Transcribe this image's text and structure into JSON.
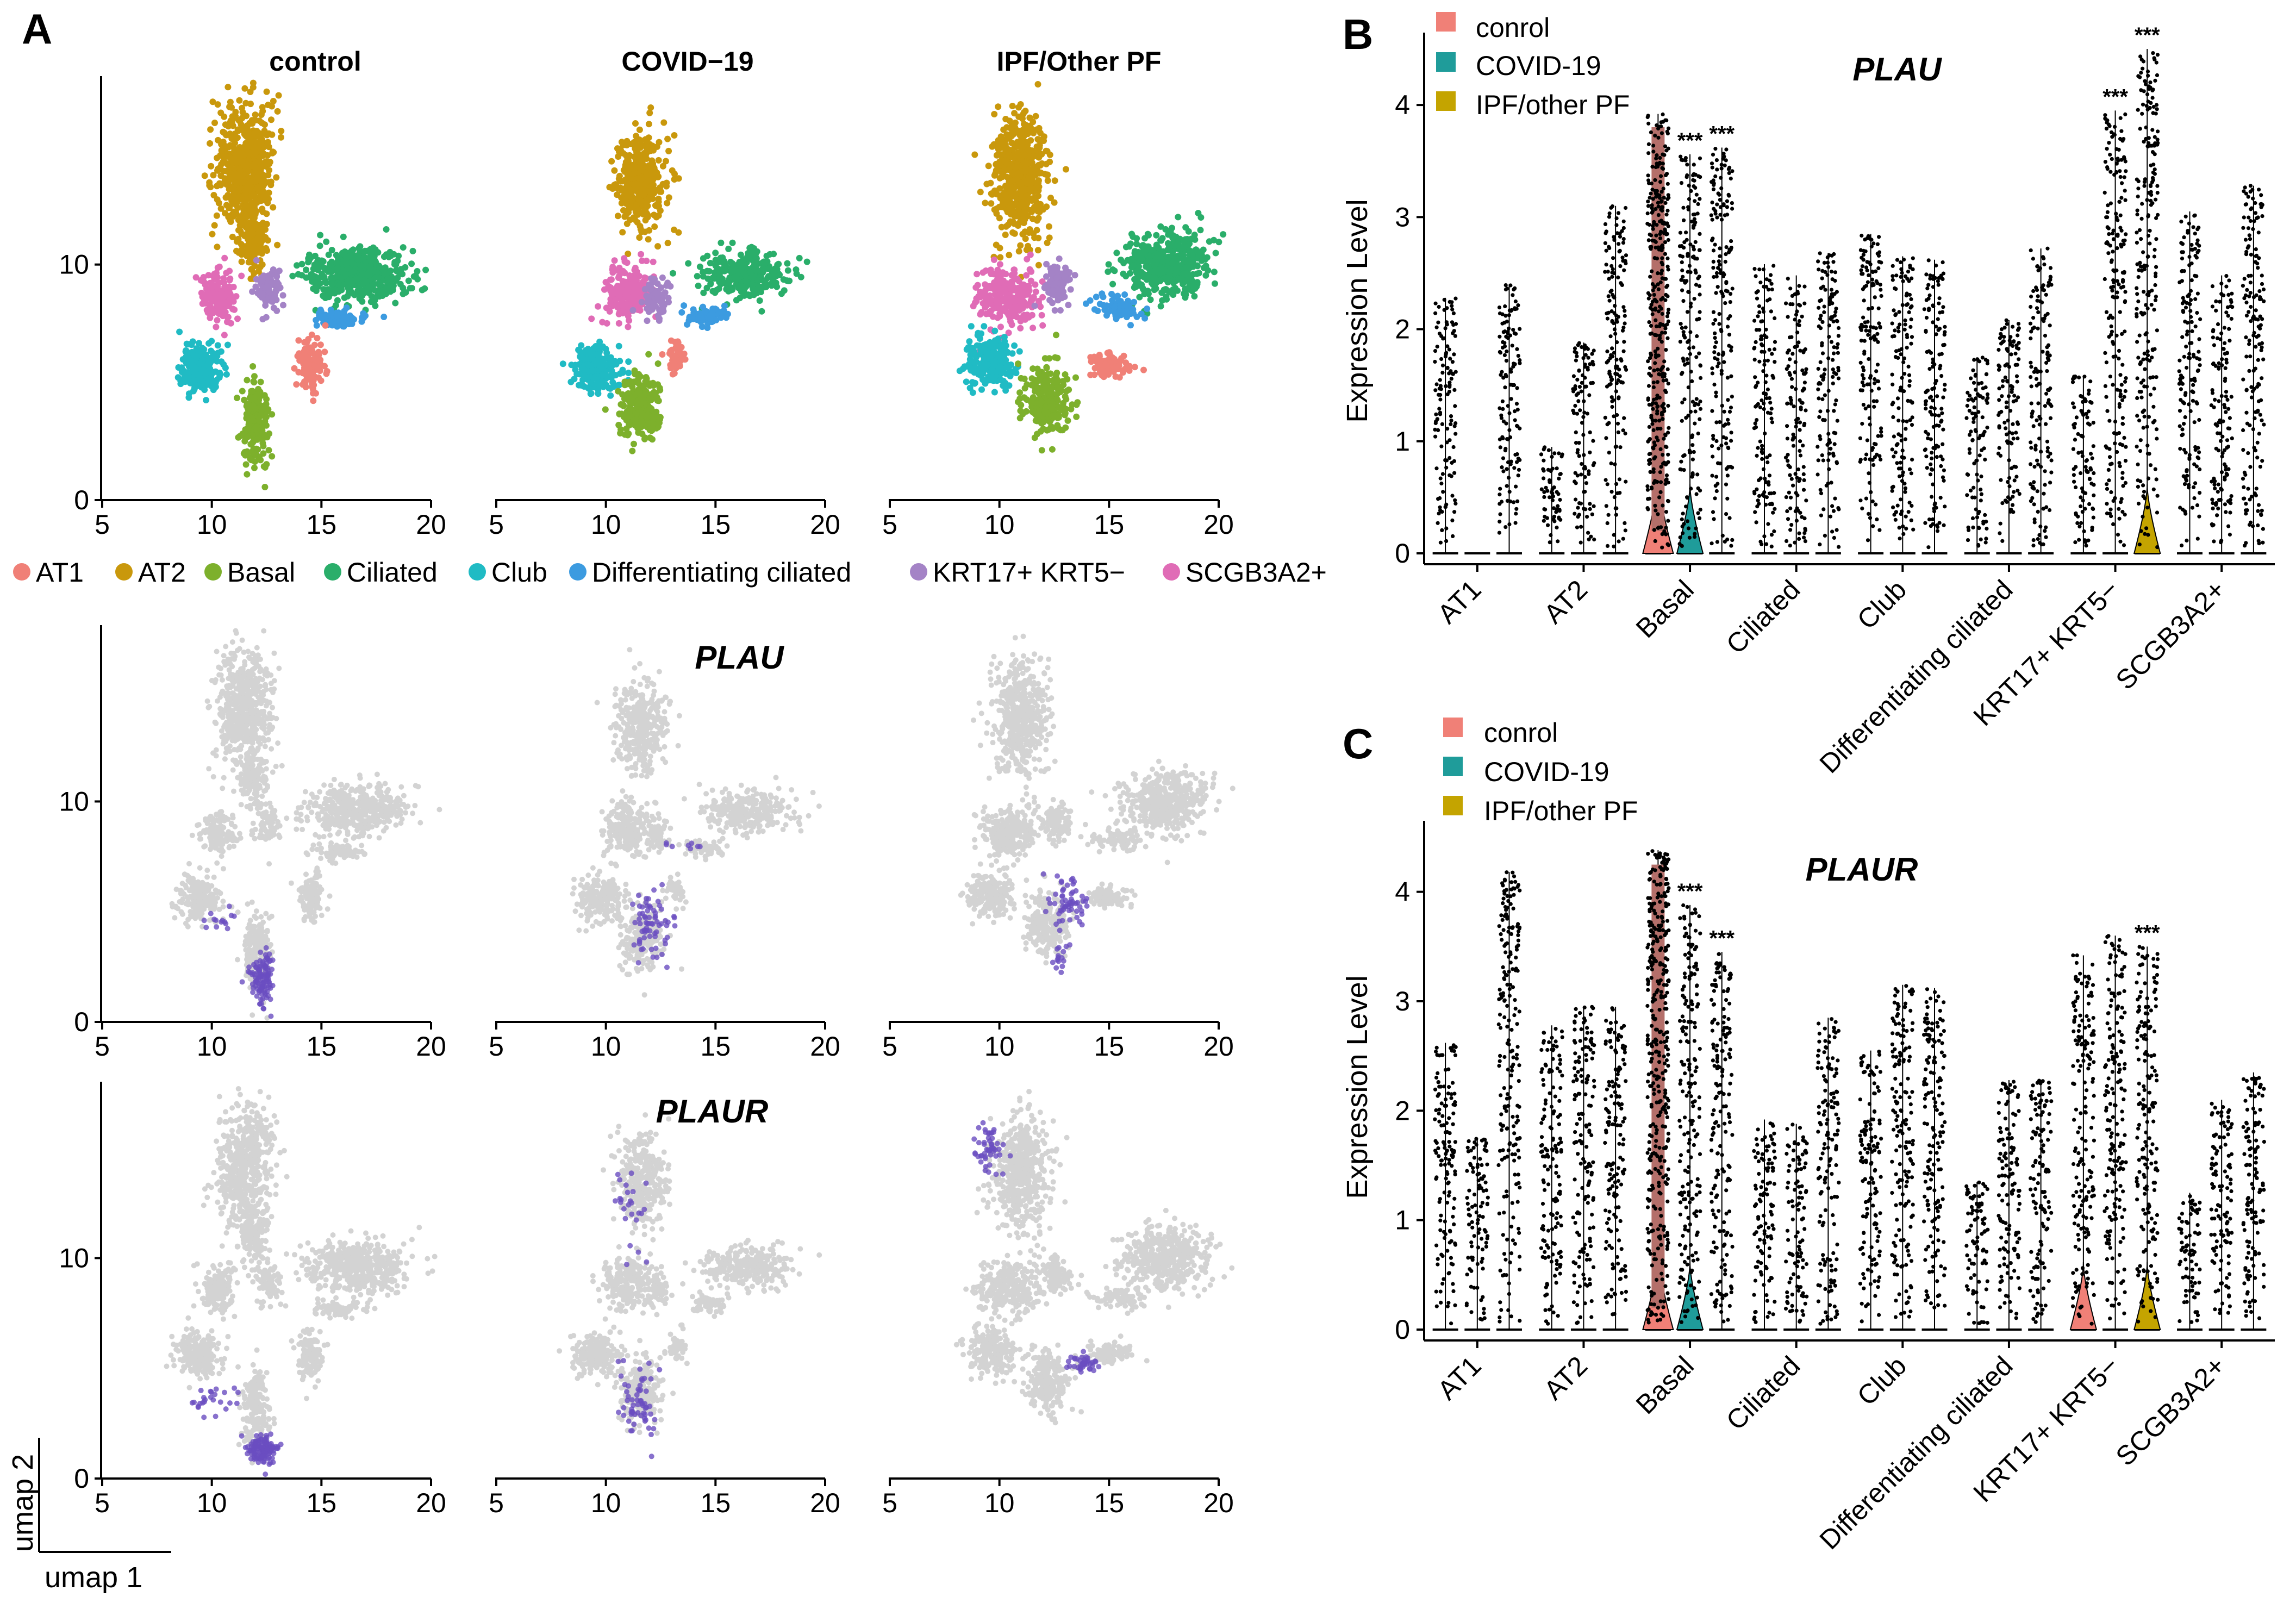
{
  "panels": {
    "a": "A",
    "b": "B",
    "c": "C"
  },
  "colors": {
    "AT1": "#F08077",
    "AT2": "#C9980C",
    "Basal": "#7DB02C",
    "Ciliated": "#2AAE6A",
    "Club": "#20BBC4",
    "Differentiating ciliated": "#3C9BE0",
    "KRT17+ KRT5−": "#A483C6",
    "SCGB3A2+": "#E06CB6",
    "grey": "#D3D3D3",
    "express": "#6A4DC0",
    "control": "#F08077",
    "covid": "#1F9C9A",
    "ipf": "#C4A400"
  },
  "umap": {
    "conditions": [
      "control",
      "COVID−19",
      "IPF/Other PF"
    ],
    "genes": [
      "PLAU",
      "PLAUR"
    ],
    "xticks": [
      "5",
      "10",
      "15",
      "20"
    ],
    "yticks": [
      "0",
      "10"
    ],
    "xlabel": "umap 1",
    "ylabel": "umap 2",
    "legend": [
      "AT1",
      "AT2",
      "Basal",
      "Ciliated",
      "Club",
      "Differentiating ciliated",
      "KRT17+ KRT5−",
      "SCGB3A2+"
    ]
  },
  "chart_data": [
    {
      "type": "violin",
      "panel": "B",
      "title": "PLAU",
      "ylabel": "Expression Level",
      "ylim": [
        0,
        4.5
      ],
      "yticks": [
        "0",
        "1",
        "2",
        "3",
        "4"
      ],
      "legend": [
        "conrol",
        "COVID-19",
        "IPF/other PF"
      ],
      "categories": [
        "AT1",
        "AT2",
        "Basal",
        "Ciliated",
        "Club",
        "Differentiating ciliated",
        "KRT17+ KRT5−",
        "SCGB3A2+"
      ],
      "series": [
        {
          "name": "conrol",
          "max": [
            2.28,
            0.95,
            3.92,
            2.58,
            2.85,
            1.75,
            1.58,
            3.05
          ]
        },
        {
          "name": "COVID-19",
          "max": [
            0.0,
            1.88,
            3.56,
            2.48,
            2.65,
            2.08,
            3.95,
            2.48
          ]
        },
        {
          "name": "IPF/other PF",
          "max": [
            2.4,
            3.1,
            3.62,
            2.68,
            2.62,
            2.72,
            4.5,
            3.28
          ]
        }
      ],
      "significance": [
        {
          "category": "Basal",
          "series": "COVID-19",
          "label": "***"
        },
        {
          "category": "Basal",
          "series": "IPF/other PF",
          "label": "***"
        },
        {
          "category": "KRT17+ KRT5−",
          "series": "COVID-19",
          "label": "***"
        },
        {
          "category": "KRT17+ KRT5−",
          "series": "IPF/other PF",
          "label": "***"
        }
      ]
    },
    {
      "type": "violin",
      "panel": "C",
      "title": "PLAUR",
      "ylabel": "Expression Level",
      "ylim": [
        0,
        4.5
      ],
      "yticks": [
        "0",
        "1",
        "2",
        "3",
        "4"
      ],
      "legend": [
        "conrol",
        "COVID-19",
        "IPF/other PF"
      ],
      "categories": [
        "AT1",
        "AT2",
        "Basal",
        "Ciliated",
        "Club",
        "Differentiating ciliated",
        "KRT17+ KRT5−",
        "SCGB3A2+"
      ],
      "series": [
        {
          "name": "conrol",
          "max": [
            2.62,
            2.78,
            4.38,
            1.92,
            2.55,
            1.35,
            3.42,
            1.25
          ]
        },
        {
          "name": "COVID-19",
          "max": [
            1.75,
            2.95,
            3.88,
            1.88,
            3.15,
            2.28,
            3.6,
            2.1
          ]
        },
        {
          "name": "IPF/other PF",
          "max": [
            4.18,
            2.95,
            3.45,
            2.85,
            3.12,
            2.28,
            3.5,
            2.35
          ]
        }
      ],
      "significance": [
        {
          "category": "Basal",
          "series": "COVID-19",
          "label": "***"
        },
        {
          "category": "Basal",
          "series": "IPF/other PF",
          "label": "***"
        },
        {
          "category": "KRT17+ KRT5−",
          "series": "IPF/other PF",
          "label": "***"
        }
      ]
    }
  ]
}
